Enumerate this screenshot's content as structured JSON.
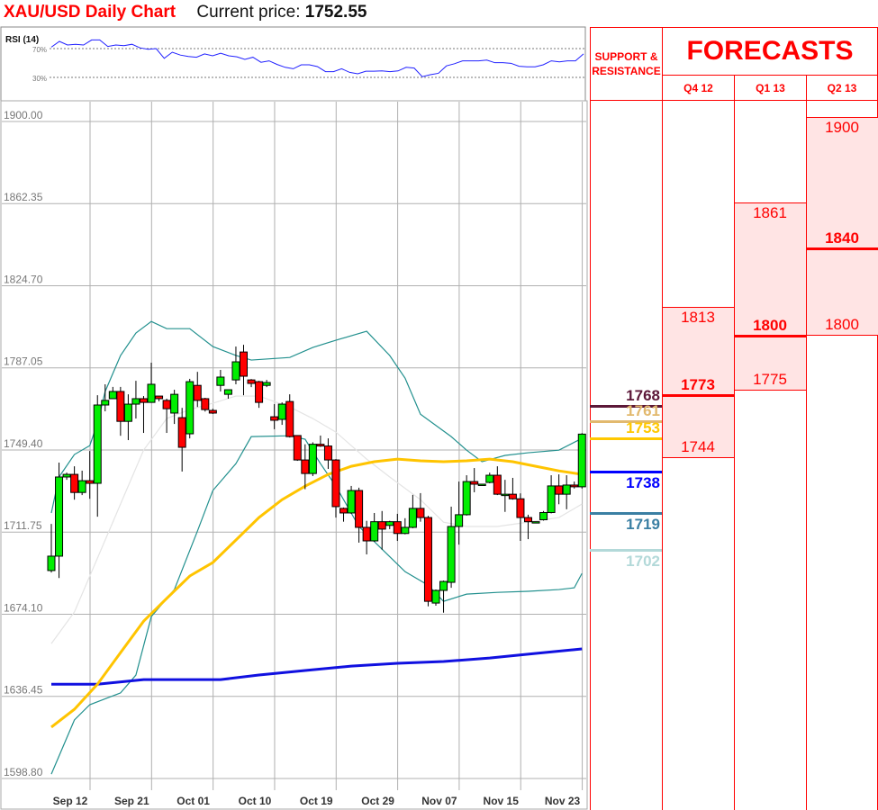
{
  "header": {
    "title": "XAU/USD Daily Chart",
    "current_price_label": "Current price:",
    "current_price": "1752.55"
  },
  "rsi": {
    "label": "RSI (14)",
    "level_high": "70%",
    "level_low": "30%",
    "values": [
      72,
      80,
      75,
      76,
      75,
      82,
      82,
      73,
      75,
      74,
      76,
      71,
      69,
      70,
      56.5,
      65,
      61,
      59,
      58,
      62.6,
      60,
      63.5,
      60,
      58.6,
      55,
      58,
      51,
      53,
      48,
      44,
      42,
      47.5,
      47.5,
      45,
      38,
      38,
      42,
      37,
      35,
      38.6,
      38.6,
      39,
      38,
      39,
      44,
      43,
      31,
      33.7,
      35.7,
      46,
      49,
      53,
      53,
      53,
      54,
      50.4,
      50.4,
      49.6,
      45.5,
      44.7,
      44.7,
      47.5,
      53,
      51.6,
      53,
      53,
      62.6
    ]
  },
  "forecast_panel": {
    "sr_header": "SUPPORT & RESISTANCE",
    "title": "FORECASTS",
    "columns": [
      {
        "label": "Q4 12",
        "high": "1813",
        "mid": "1773",
        "low": "1744",
        "high_v": 1813,
        "mid_v": 1773,
        "low_v": 1744
      },
      {
        "label": "Q1 13",
        "high": "1861",
        "mid": "1800",
        "low": "1775",
        "high_v": 1861,
        "mid_v": 1800,
        "low_v": 1775
      },
      {
        "label": "Q2 13",
        "high": "1900",
        "mid": "1840",
        "low": "1800",
        "high_v": 1900,
        "mid_v": 1840,
        "low_v": 1800
      }
    ],
    "levels": [
      {
        "value": "1768",
        "v": 1768,
        "color": "#5c1838",
        "pos": "above"
      },
      {
        "value": "1761",
        "v": 1761,
        "color": "#e2b96e",
        "pos": "above"
      },
      {
        "value": "1753",
        "v": 1753,
        "color": "#ffc800",
        "pos": "above"
      },
      {
        "value": "1738",
        "v": 1738,
        "color": "#0000ff",
        "pos": "below"
      },
      {
        "value": "1719",
        "v": 1719,
        "color": "#3a7fa3",
        "pos": "below"
      },
      {
        "value": "1702",
        "v": 1702,
        "color": "#b3d9d9",
        "pos": "below"
      }
    ]
  },
  "chart_data": {
    "type": "candlestick",
    "title": "XAU/USD Daily Chart",
    "ylim": [
      1598.8,
      1900.0
    ],
    "y_ticks": [
      "1900.00",
      "1862.35",
      "1824.70",
      "1787.05",
      "1749.40",
      "1711.75",
      "1674.10",
      "1636.45",
      "1598.80"
    ],
    "x_ticks": [
      {
        "label": "Sep 12",
        "i": 0
      },
      {
        "label": "Sep 21",
        "i": 8
      },
      {
        "label": "Oct 01",
        "i": 16
      },
      {
        "label": "Oct 10",
        "i": 24
      },
      {
        "label": "Oct 19",
        "i": 32
      },
      {
        "label": "Oct 29",
        "i": 40
      },
      {
        "label": "Nov 07",
        "i": 48
      },
      {
        "label": "Nov 15",
        "i": 56
      },
      {
        "label": "Nov 23",
        "i": 64
      }
    ],
    "colors": {
      "up": "#00ee00",
      "down": "#ff0000",
      "bb": "#22908e",
      "bb_mid": "#e4e4e4",
      "sma50": "#ffc400",
      "sma200": "#1010e0"
    },
    "ohlc": [
      [
        1690.0,
        1711.4,
        1689.1,
        1696.6
      ],
      [
        1696.6,
        1739.5,
        1686.6,
        1732.9
      ],
      [
        1732.9,
        1734.9,
        1731.6,
        1734.1
      ],
      [
        1734.1,
        1737.8,
        1722.5,
        1725.8
      ],
      [
        1725.8,
        1735.8,
        1724.6,
        1731.2
      ],
      [
        1731.2,
        1744.8,
        1722.9,
        1730.0
      ],
      [
        1730.0,
        1770.4,
        1714.7,
        1765.9
      ],
      [
        1765.9,
        1775.4,
        1763.0,
        1768.0
      ],
      [
        1768.8,
        1774.2,
        1768.8,
        1772.1
      ],
      [
        1772.1,
        1774.2,
        1751.8,
        1758.4
      ],
      [
        1758.4,
        1770.8,
        1749.8,
        1766.3
      ],
      [
        1766.3,
        1777.0,
        1759.7,
        1768.8
      ],
      [
        1768.8,
        1770.0,
        1753.1,
        1767.1
      ],
      [
        1767.1,
        1785.3,
        1767.1,
        1775.4
      ],
      [
        1770.0,
        1770.0,
        1767.6,
        1768.8
      ],
      [
        1768.0,
        1768.8,
        1753.1,
        1764.2
      ],
      [
        1762.2,
        1772.9,
        1757.2,
        1770.8
      ],
      [
        1760.1,
        1764.6,
        1735.4,
        1746.5
      ],
      [
        1752.7,
        1777.9,
        1750.6,
        1776.6
      ],
      [
        1774.9,
        1781.1,
        1765.0,
        1768.0
      ],
      [
        1768.8,
        1769.2,
        1762.9,
        1763.8
      ],
      [
        1763.4,
        1764.2,
        1761.8,
        1762.2
      ],
      [
        1774.9,
        1782.0,
        1772.1,
        1778.7
      ],
      [
        1770.8,
        1771.7,
        1768.8,
        1772.9
      ],
      [
        1777.4,
        1792.7,
        1775.4,
        1785.7
      ],
      [
        1790.2,
        1793.5,
        1770.4,
        1779.1
      ],
      [
        1777.4,
        1777.8,
        1774.1,
        1775.8
      ],
      [
        1776.6,
        1777.0,
        1764.6,
        1767.1
      ],
      [
        1774.9,
        1777.4,
        1774.1,
        1776.2
      ],
      [
        1760.5,
        1766.3,
        1754.8,
        1758.9
      ],
      [
        1759.3,
        1767.1,
        1756.8,
        1766.3
      ],
      [
        1767.5,
        1770.8,
        1751.0,
        1751.4
      ],
      [
        1751.9,
        1751.9,
        1740.3,
        1740.7
      ],
      [
        1740.7,
        1747.9,
        1727.3,
        1734.5
      ],
      [
        1734.5,
        1748.8,
        1733.3,
        1747.9
      ],
      [
        1747.9,
        1751.9,
        1746.7,
        1747.1
      ],
      [
        1747.1,
        1750.6,
        1736.6,
        1740.7
      ],
      [
        1740.7,
        1741.1,
        1714.3,
        1719.3
      ],
      [
        1718.5,
        1718.9,
        1712.4,
        1716.4
      ],
      [
        1716.4,
        1728.8,
        1716.0,
        1726.7
      ],
      [
        1726.7,
        1728.0,
        1702.8,
        1709.8
      ],
      [
        1709.8,
        1712.8,
        1697.4,
        1703.6
      ],
      [
        1703.6,
        1716.4,
        1703.2,
        1712.4
      ],
      [
        1712.4,
        1717.3,
        1699.6,
        1709.0
      ],
      [
        1710.7,
        1712.8,
        1709.0,
        1712.4
      ],
      [
        1712.4,
        1716.0,
        1703.6,
        1707.0
      ],
      [
        1707.0,
        1714.0,
        1706.6,
        1709.8
      ],
      [
        1709.8,
        1724.7,
        1709.4,
        1718.5
      ],
      [
        1718.5,
        1725.5,
        1712.4,
        1714.3
      ],
      [
        1714.3,
        1715.1,
        1673.6,
        1675.9
      ],
      [
        1675.1,
        1681.3,
        1673.9,
        1680.9
      ],
      [
        1680.9,
        1685.4,
        1670.7,
        1685.0
      ],
      [
        1684.6,
        1719.3,
        1682.1,
        1710.2
      ],
      [
        1710.2,
        1730.8,
        1701.9,
        1715.6
      ],
      [
        1715.6,
        1733.7,
        1715.2,
        1730.8
      ],
      [
        1730.8,
        1737.0,
        1725.9,
        1729.6
      ],
      [
        1729.6,
        1729.6,
        1729.2,
        1729.6
      ],
      [
        1730.4,
        1734.9,
        1730.0,
        1733.7
      ],
      [
        1733.7,
        1737.8,
        1724.6,
        1725.0
      ],
      [
        1725.0,
        1731.6,
        1716.9,
        1725.0
      ],
      [
        1725.0,
        1732.5,
        1722.5,
        1722.9
      ],
      [
        1722.9,
        1725.4,
        1703.6,
        1714.3
      ],
      [
        1714.3,
        1715.6,
        1704.4,
        1712.4
      ],
      [
        1712.4,
        1712.4,
        1712.4,
        1712.4
      ],
      [
        1713.3,
        1717.3,
        1712.9,
        1716.6
      ],
      [
        1716.6,
        1733.7,
        1716.2,
        1728.8
      ],
      [
        1728.8,
        1734.1,
        1720.4,
        1725.0
      ],
      [
        1725.0,
        1733.7,
        1718.1,
        1729.2
      ],
      [
        1729.2,
        1730.8,
        1727.6,
        1728.4
      ],
      [
        1728.4,
        1753.0,
        1727.6,
        1752.55
      ]
    ],
    "bb_upper": [
      [
        0,
        1716.4
      ],
      [
        1,
        1732.9
      ],
      [
        3,
        1743.2
      ],
      [
        5,
        1747.3
      ],
      [
        6,
        1757.6
      ],
      [
        7,
        1772.1
      ],
      [
        9,
        1788.6
      ],
      [
        11,
        1798.9
      ],
      [
        13,
        1804.2
      ],
      [
        15,
        1800.9
      ],
      [
        18,
        1800.9
      ],
      [
        21,
        1792.7
      ],
      [
        24,
        1788.6
      ],
      [
        26,
        1786.5
      ],
      [
        31,
        1787.7
      ],
      [
        34,
        1792.3
      ],
      [
        37,
        1795.6
      ],
      [
        41,
        1799.7
      ],
      [
        44,
        1788.6
      ],
      [
        46,
        1778.2
      ],
      [
        48,
        1761.7
      ],
      [
        52,
        1751.4
      ],
      [
        54,
        1745.2
      ],
      [
        56,
        1739.9
      ],
      [
        59,
        1742.8
      ],
      [
        62,
        1744.0
      ],
      [
        66,
        1745.2
      ],
      [
        69,
        1750.6
      ]
    ],
    "bb_middle": [
      [
        0,
        1656.5
      ],
      [
        3,
        1671.0
      ],
      [
        6,
        1695.7
      ],
      [
        9,
        1720.5
      ],
      [
        12,
        1745.2
      ],
      [
        15,
        1759.7
      ],
      [
        18,
        1763.8
      ],
      [
        21,
        1766.7
      ],
      [
        24,
        1770.0
      ],
      [
        27,
        1770.0
      ],
      [
        31,
        1765.0
      ],
      [
        34,
        1759.7
      ],
      [
        37,
        1753.5
      ],
      [
        41,
        1741.1
      ],
      [
        44,
        1732.9
      ],
      [
        48,
        1722.5
      ],
      [
        51,
        1712.2
      ],
      [
        54,
        1710.2
      ],
      [
        58,
        1710.2
      ],
      [
        62,
        1712.2
      ],
      [
        66,
        1714.3
      ],
      [
        69,
        1720.5
      ]
    ],
    "bb_lower": [
      [
        0,
        1596.7
      ],
      [
        3,
        1621.5
      ],
      [
        5,
        1628.5
      ],
      [
        9,
        1633.9
      ],
      [
        11,
        1642.1
      ],
      [
        13,
        1668.9
      ],
      [
        16,
        1681.3
      ],
      [
        19,
        1708.1
      ],
      [
        21,
        1726.7
      ],
      [
        24,
        1739.0
      ],
      [
        26,
        1751.4
      ],
      [
        31,
        1751.8
      ],
      [
        33,
        1750.2
      ],
      [
        35,
        1739.0
      ],
      [
        37,
        1728.7
      ],
      [
        40,
        1710.2
      ],
      [
        43,
        1699.8
      ],
      [
        46,
        1689.5
      ],
      [
        49,
        1683.3
      ],
      [
        51,
        1675.9
      ],
      [
        54,
        1679.2
      ],
      [
        58,
        1680.0
      ],
      [
        62,
        1680.5
      ],
      [
        66,
        1681.3
      ],
      [
        68,
        1682.1
      ],
      [
        69,
        1688.7
      ]
    ],
    "sma50": [
      [
        0,
        1618.2
      ],
      [
        3,
        1626.4
      ],
      [
        6,
        1637.9
      ],
      [
        9,
        1652.4
      ],
      [
        12,
        1666.8
      ],
      [
        15,
        1677.2
      ],
      [
        18,
        1687.5
      ],
      [
        21,
        1693.7
      ],
      [
        24,
        1704.0
      ],
      [
        27,
        1714.3
      ],
      [
        30,
        1722.5
      ],
      [
        33,
        1728.7
      ],
      [
        36,
        1734.1
      ],
      [
        39,
        1737.8
      ],
      [
        42,
        1739.9
      ],
      [
        45,
        1741.1
      ],
      [
        48,
        1740.3
      ],
      [
        51,
        1739.9
      ],
      [
        54,
        1740.3
      ],
      [
        57,
        1741.1
      ],
      [
        60,
        1739.9
      ],
      [
        63,
        1737.8
      ],
      [
        66,
        1735.7
      ],
      [
        69,
        1734.1
      ]
    ],
    "sma200": [
      [
        0,
        1637.9
      ],
      [
        6,
        1637.9
      ],
      [
        12,
        1640.0
      ],
      [
        18,
        1640.0
      ],
      [
        22,
        1640.0
      ],
      [
        27,
        1642.1
      ],
      [
        33,
        1644.2
      ],
      [
        39,
        1646.2
      ],
      [
        45,
        1647.5
      ],
      [
        51,
        1648.3
      ],
      [
        57,
        1649.9
      ],
      [
        63,
        1652.0
      ],
      [
        69,
        1654.1
      ]
    ]
  }
}
